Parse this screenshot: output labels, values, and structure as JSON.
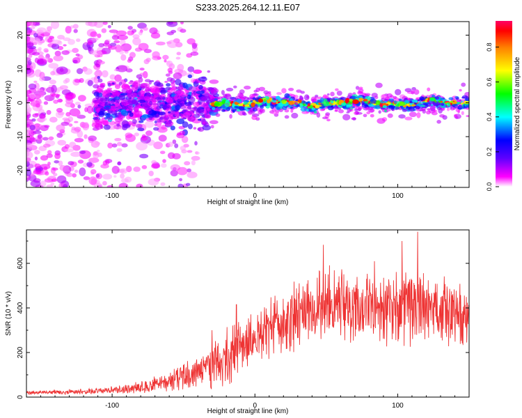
{
  "title": "S233.2025.264.12.11.E07",
  "chart_data": [
    {
      "type": "heatmap",
      "name": "spectrogram",
      "xlabel": "Height of straight line (km)",
      "ylabel": "Frequency (Hz)",
      "xlim": [
        -160,
        150
      ],
      "ylim": [
        -25,
        24
      ],
      "xticks": [
        -100,
        0,
        100
      ],
      "yticks": [
        -20,
        -10,
        0,
        10,
        20
      ],
      "colorbar": {
        "label": "Normalized spectral amplitude",
        "range": [
          0,
          0.95
        ],
        "ticks": [
          0.0,
          0.2,
          0.4,
          0.6,
          0.8
        ],
        "tick_labels": [
          "0.0",
          "0.2",
          "0.4",
          "0.6",
          "0.8"
        ],
        "colormap": [
          "#ffffff",
          "#ff00ff",
          "#5000ff",
          "#0000ff",
          "#00ffff",
          "#00ff00",
          "#ffff00",
          "#ff8000",
          "#ff0000"
        ]
      },
      "description_regions": [
        {
          "x_range": [
            -160,
            -110
          ],
          "freq_range": [
            -25,
            24
          ],
          "amplitude": [
            0.02,
            0.1
          ]
        },
        {
          "x_range": [
            -110,
            -30
          ],
          "freq_range": [
            -8,
            8
          ],
          "amplitude": [
            0.05,
            0.35
          ]
        },
        {
          "x_range": [
            -30,
            150
          ],
          "freq_range": [
            -3,
            3
          ],
          "amplitude": [
            0.2,
            0.95
          ]
        }
      ]
    },
    {
      "type": "line",
      "name": "snr",
      "xlabel": "Height of straight line (km)",
      "ylabel": "SNR (10 * v/v)",
      "xlim": [
        -160,
        150
      ],
      "ylim": [
        0,
        750
      ],
      "xticks": [
        -100,
        0,
        100
      ],
      "yticks": [
        0,
        200,
        400,
        600
      ],
      "color": "#ee3333",
      "x": [
        -160,
        -140,
        -120,
        -100,
        -80,
        -70,
        -60,
        -50,
        -40,
        -30,
        -25,
        -20,
        -10,
        0,
        10,
        20,
        30,
        40,
        50,
        60,
        70,
        80,
        90,
        100,
        110,
        120,
        130,
        140,
        150
      ],
      "values": [
        20,
        22,
        25,
        30,
        45,
        55,
        70,
        90,
        110,
        130,
        150,
        180,
        230,
        270,
        300,
        340,
        380,
        400,
        410,
        420,
        415,
        420,
        410,
        400,
        420,
        410,
        390,
        370,
        360
      ],
      "noise_amplitude": [
        10,
        12,
        15,
        20,
        30,
        40,
        55,
        70,
        90,
        120,
        140,
        150,
        140,
        120,
        150,
        170,
        180,
        190,
        200,
        200,
        200,
        200,
        190,
        190,
        200,
        200,
        180,
        170,
        170
      ],
      "peaks": [
        {
          "x": -30,
          "y": 300
        },
        {
          "x": -13,
          "y": 415
        },
        {
          "x": 48,
          "y": 683
        },
        {
          "x": 103,
          "y": 700
        },
        {
          "x": 114,
          "y": 742
        }
      ]
    }
  ]
}
